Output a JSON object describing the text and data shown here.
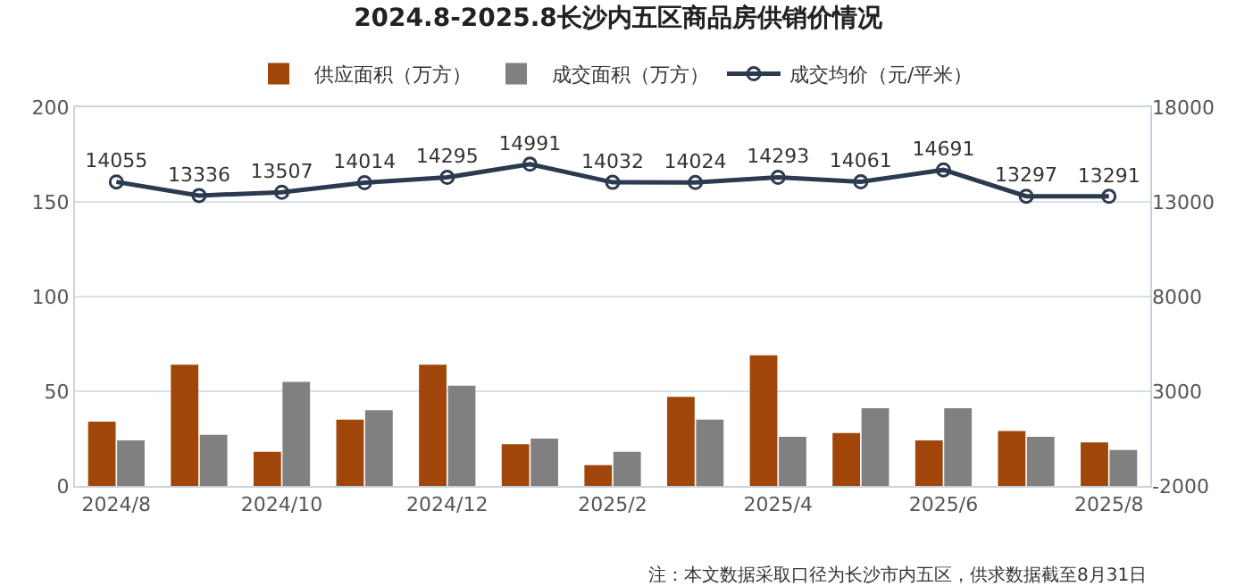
{
  "chart_data": {
    "type": "bar",
    "title": "2024.8-2025.8长沙内五区商品房供销价情况",
    "categories": [
      "2024/8",
      null,
      "2024/10",
      null,
      "2024/12",
      null,
      "2025/2",
      null,
      "2025/4",
      null,
      "2025/6",
      null,
      "2025/8"
    ],
    "series": [
      {
        "name": "供应面积（万方）",
        "color": "#a0460a",
        "values": [
          34,
          64,
          18,
          35,
          64,
          22,
          11,
          47,
          69,
          28,
          24,
          29,
          23
        ]
      },
      {
        "name": "成交面积（万方）",
        "color": "#808080",
        "values": [
          24,
          27,
          55,
          40,
          53,
          25,
          18,
          35,
          26,
          41,
          41,
          26,
          19
        ]
      },
      {
        "name": "成交均价（元/平米）",
        "type": "line",
        "axis": "y2",
        "color": "#2b3a4e",
        "marker": "circle",
        "values": [
          14055,
          13336,
          13507,
          14014,
          14295,
          14991,
          14032,
          14024,
          14293,
          14061,
          14691,
          13297,
          13291
        ],
        "value_labels": [
          "14055",
          "13336",
          "13507",
          "14014",
          "14295",
          "14991",
          "14032",
          "14024",
          "14293",
          "14061",
          "14691",
          "13297",
          "13291"
        ]
      }
    ],
    "ylim": [
      0,
      200
    ],
    "yticks": [
      0,
      50,
      100,
      150,
      200
    ],
    "y2lim": [
      -2000,
      18000
    ],
    "y2ticks": [
      -2000,
      3000,
      8000,
      13000,
      18000
    ],
    "grid": "y",
    "legend": "top",
    "annotations": [
      "注：本文数据采取口径为长沙市内五区，供求数据截至8月31日"
    ]
  }
}
